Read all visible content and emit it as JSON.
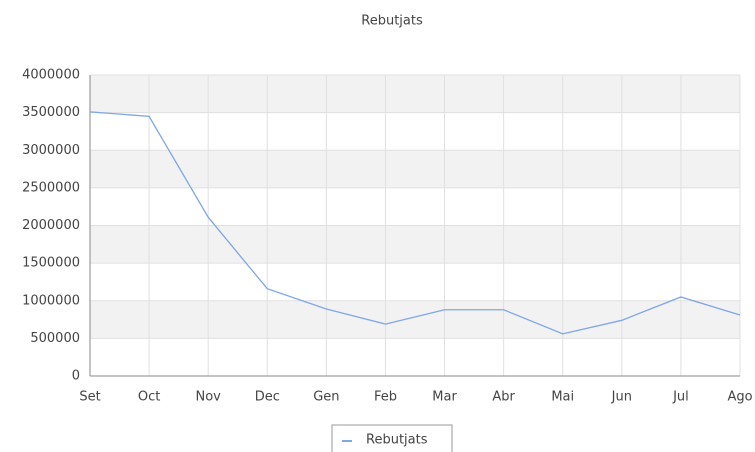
{
  "chart_data": {
    "type": "line",
    "title": "Rebutjats",
    "categories": [
      "Set",
      "Oct",
      "Nov",
      "Dec",
      "Gen",
      "Feb",
      "Mar",
      "Abr",
      "Mai",
      "Jun",
      "Jul",
      "Ago"
    ],
    "series": [
      {
        "name": "Rebutjats",
        "color": "#7ea6e8",
        "values": [
          3510000,
          3450000,
          2110000,
          1160000,
          890000,
          690000,
          880000,
          880000,
          560000,
          740000,
          1050000,
          810000
        ]
      }
    ],
    "ylim": [
      0,
      4000000
    ],
    "yticks": [
      0,
      500000,
      1000000,
      1500000,
      2000000,
      2500000,
      3000000,
      3500000,
      4000000
    ],
    "grid": true,
    "legend": "bottom"
  }
}
